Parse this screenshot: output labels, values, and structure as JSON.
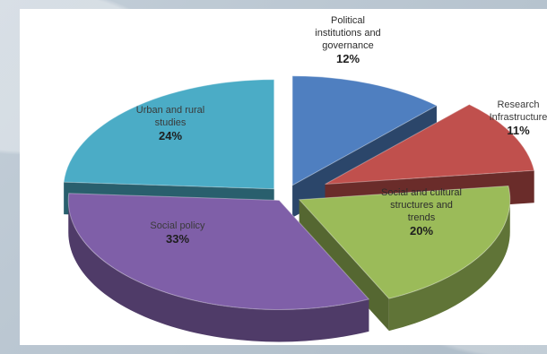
{
  "chart_data": {
    "type": "pie",
    "title": "",
    "slices": [
      {
        "label": "Political institutions and governance",
        "value": 12,
        "value_label": "12%",
        "color": "#4f7fc0"
      },
      {
        "label": "Research Infrastructure",
        "value": 11,
        "value_label": "11%",
        "color": "#c0504d"
      },
      {
        "label": "Social and cultural structures and trends",
        "value": 20,
        "value_label": "20%",
        "color": "#9bbb59"
      },
      {
        "label": "Social policy",
        "value": 33,
        "value_label": "33%",
        "color": "#7f5fa8"
      },
      {
        "label": "Urban and rural studies",
        "value": 24,
        "value_label": "24%",
        "color": "#4bacc6"
      }
    ],
    "exploded": true,
    "three_d": true,
    "legend": "none"
  }
}
